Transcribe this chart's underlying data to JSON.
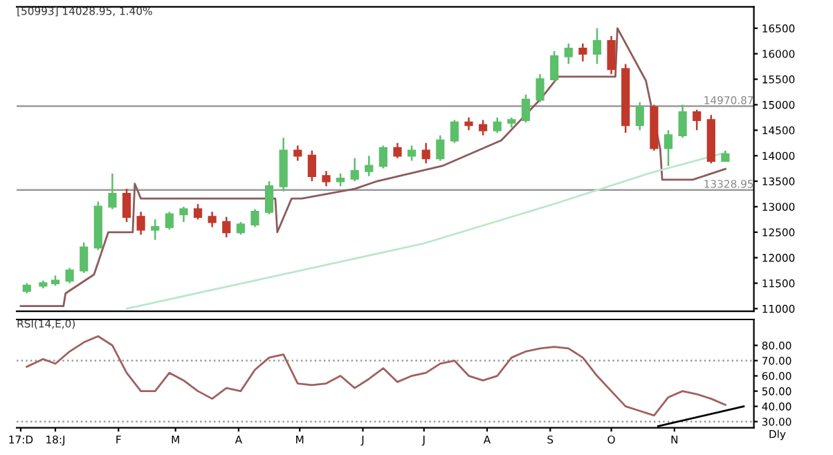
{
  "chart_data": [
    {
      "type": "candlestick",
      "title": "[50993] 14028.95, 1.40%",
      "x": [
        "2017-12-18",
        "2017-12-26",
        "2018-01-01",
        "2018-01-08",
        "2018-01-15",
        "2018-01-22",
        "2018-01-29",
        "2018-02-05",
        "2018-02-12",
        "2018-02-19",
        "2018-02-26",
        "2018-03-05",
        "2018-03-12",
        "2018-03-19",
        "2018-03-26",
        "2018-04-02",
        "2018-04-09",
        "2018-04-16",
        "2018-04-23",
        "2018-04-30",
        "2018-05-07",
        "2018-05-14",
        "2018-05-21",
        "2018-05-28",
        "2018-06-04",
        "2018-06-11",
        "2018-06-18",
        "2018-06-25",
        "2018-07-02",
        "2018-07-09",
        "2018-07-16",
        "2018-07-23",
        "2018-07-30",
        "2018-08-06",
        "2018-08-13",
        "2018-08-20",
        "2018-08-27",
        "2018-09-03",
        "2018-09-10",
        "2018-09-17",
        "2018-09-24",
        "2018-10-01",
        "2018-10-08",
        "2018-10-15",
        "2018-10-22",
        "2018-10-29",
        "2018-11-05",
        "2018-11-12",
        "2018-11-19",
        "2018-11-26"
      ],
      "ohlc": [
        [
          11350,
          11500,
          11300,
          11450
        ],
        [
          11450,
          11550,
          11400,
          11500
        ],
        [
          11500,
          11650,
          11450,
          11550
        ],
        [
          11550,
          11800,
          11500,
          11750
        ],
        [
          11750,
          12300,
          11700,
          12200
        ],
        [
          12200,
          13100,
          12150,
          13000
        ],
        [
          13000,
          13650,
          12950,
          13250
        ],
        [
          13250,
          13350,
          12700,
          12800
        ],
        [
          12800,
          12900,
          12450,
          12550
        ],
        [
          12550,
          12750,
          12350,
          12600
        ],
        [
          12600,
          12900,
          12550,
          12850
        ],
        [
          12850,
          13000,
          12700,
          12950
        ],
        [
          12950,
          13050,
          12750,
          12800
        ],
        [
          12800,
          12900,
          12600,
          12700
        ],
        [
          12700,
          12800,
          12400,
          12500
        ],
        [
          12500,
          12700,
          12450,
          12650
        ],
        [
          12650,
          12950,
          12600,
          12900
        ],
        [
          12900,
          13500,
          12850,
          13400
        ],
        [
          13400,
          14350,
          13300,
          14100
        ],
        [
          14100,
          14200,
          13900,
          14000
        ],
        [
          14000,
          14100,
          13500,
          13600
        ],
        [
          13600,
          13700,
          13400,
          13500
        ],
        [
          13500,
          13650,
          13400,
          13550
        ],
        [
          13550,
          13950,
          13500,
          13700
        ],
        [
          13700,
          14000,
          13600,
          13800
        ],
        [
          13800,
          14200,
          13750,
          14150
        ],
        [
          14150,
          14250,
          13950,
          14000
        ],
        [
          14000,
          14200,
          13900,
          14100
        ],
        [
          14100,
          14250,
          13850,
          13950
        ],
        [
          13950,
          14400,
          13900,
          14300
        ],
        [
          14300,
          14700,
          14250,
          14650
        ],
        [
          14650,
          14750,
          14500,
          14600
        ],
        [
          14600,
          14700,
          14400,
          14500
        ],
        [
          14500,
          14750,
          14450,
          14650
        ],
        [
          14650,
          14750,
          14550,
          14700
        ],
        [
          14700,
          15200,
          14650,
          15100
        ],
        [
          15100,
          15600,
          15050,
          15500
        ],
        [
          15500,
          16050,
          15450,
          15950
        ],
        [
          15950,
          16200,
          15800,
          16100
        ],
        [
          16100,
          16200,
          15850,
          16000
        ],
        [
          16000,
          16500,
          15800,
          16250
        ],
        [
          16250,
          16350,
          15600,
          15700
        ],
        [
          15700,
          15800,
          14450,
          14600
        ],
        [
          14600,
          15050,
          14500,
          14950
        ],
        [
          14950,
          15000,
          14100,
          14150
        ],
        [
          14150,
          14500,
          13800,
          14400
        ],
        [
          14400,
          15000,
          14350,
          14850
        ],
        [
          14850,
          14900,
          14500,
          14700
        ],
        [
          14700,
          14800,
          13850,
          13900
        ],
        [
          13900,
          14100,
          13900,
          14028.95
        ]
      ],
      "colors": [
        "#5cbf6a",
        "#5cbf6a",
        "#5cbf6a",
        "#5cbf6a",
        "#5cbf6a",
        "#5cbf6a",
        "#5cbf6a",
        "#c0392b",
        "#c0392b",
        "#5cbf6a",
        "#5cbf6a",
        "#5cbf6a",
        "#c0392b",
        "#c0392b",
        "#c0392b",
        "#5cbf6a",
        "#5cbf6a",
        "#5cbf6a",
        "#5cbf6a",
        "#c0392b",
        "#c0392b",
        "#c0392b",
        "#5cbf6a",
        "#5cbf6a",
        "#5cbf6a",
        "#5cbf6a",
        "#c0392b",
        "#5cbf6a",
        "#c0392b",
        "#5cbf6a",
        "#5cbf6a",
        "#c0392b",
        "#c0392b",
        "#5cbf6a",
        "#5cbf6a",
        "#5cbf6a",
        "#5cbf6a",
        "#5cbf6a",
        "#5cbf6a",
        "#c0392b",
        "#5cbf6a",
        "#c0392b",
        "#c0392b",
        "#5cbf6a",
        "#c0392b",
        "#5cbf6a",
        "#5cbf6a",
        "#c0392b",
        "#c0392b",
        "#5cbf6a"
      ],
      "series": [
        {
          "type": "line",
          "color": "#8d5b5b",
          "x": [
            "2017-12-15",
            "2018-01-05",
            "2018-01-06",
            "2018-01-20",
            "2018-01-27",
            "2018-02-08",
            "2018-02-09",
            "2018-02-12",
            "2018-04-19",
            "2018-04-20",
            "2018-04-27",
            "2018-05-02",
            "2018-05-28",
            "2018-06-08",
            "2018-07-10",
            "2018-08-08",
            "2018-08-27",
            "2018-09-05",
            "2018-10-03",
            "2018-10-04",
            "2018-10-18",
            "2018-10-25",
            "2018-10-26",
            "2018-11-10",
            "2018-11-26"
          ],
          "values": [
            11050,
            11050,
            11300,
            11670,
            12500,
            12500,
            13450,
            13160,
            13160,
            12500,
            13160,
            13160,
            13350,
            13500,
            13800,
            14300,
            15100,
            15550,
            15550,
            16500,
            15470,
            14140,
            13530,
            13530,
            13740
          ]
        },
        {
          "type": "line",
          "color": "#b9e8c9",
          "x": [
            "2018-02-05",
            "2018-07-01",
            "2018-09-05",
            "2018-10-20",
            "2018-11-26"
          ],
          "values": [
            11000,
            12280,
            13080,
            13660,
            14060
          ]
        }
      ],
      "ref_lines": [
        {
          "axis": "y",
          "value": 14970.87,
          "label": "14970.87",
          "color": "#9a9a9a"
        },
        {
          "axis": "y",
          "value": 13328.95,
          "label": "13328.95",
          "color": "#9a9a9a"
        }
      ],
      "xlim": [
        "2017-12-13",
        "2018-12-10"
      ],
      "ylim": [
        10950,
        16920
      ],
      "yticks": [
        11000,
        11500,
        12000,
        12500,
        13000,
        13500,
        14000,
        14500,
        15000,
        15500,
        16000,
        16500
      ],
      "tick_labels": "y",
      "grid": false
    },
    {
      "type": "line",
      "title": "RSI(14,E,0)",
      "x": [
        "2017-12-18",
        "2017-12-26",
        "2018-01-01",
        "2018-01-08",
        "2018-01-15",
        "2018-01-22",
        "2018-01-29",
        "2018-02-05",
        "2018-02-12",
        "2018-02-19",
        "2018-02-26",
        "2018-03-05",
        "2018-03-12",
        "2018-03-19",
        "2018-03-26",
        "2018-04-02",
        "2018-04-09",
        "2018-04-16",
        "2018-04-23",
        "2018-04-30",
        "2018-05-07",
        "2018-05-14",
        "2018-05-21",
        "2018-05-28",
        "2018-06-04",
        "2018-06-11",
        "2018-06-18",
        "2018-06-25",
        "2018-07-02",
        "2018-07-09",
        "2018-07-16",
        "2018-07-23",
        "2018-07-30",
        "2018-08-06",
        "2018-08-13",
        "2018-08-20",
        "2018-08-27",
        "2018-09-03",
        "2018-09-10",
        "2018-09-17",
        "2018-09-24",
        "2018-10-01",
        "2018-10-08",
        "2018-10-15",
        "2018-10-22",
        "2018-10-29",
        "2018-11-05",
        "2018-11-12",
        "2018-11-19",
        "2018-11-26"
      ],
      "series": [
        {
          "color": "#a0605e",
          "values": [
            66,
            71,
            68,
            76,
            82,
            86,
            80,
            62,
            50,
            50,
            62,
            57,
            50,
            45,
            52,
            50,
            64,
            72,
            74,
            55,
            54,
            55,
            60,
            52,
            58,
            65,
            56,
            60,
            62,
            68,
            70,
            60,
            57,
            60,
            72,
            76,
            78,
            79,
            78,
            72,
            60,
            50,
            40,
            37,
            34,
            46,
            50,
            48,
            45,
            41
          ]
        },
        {
          "color": "#000000",
          "x": [
            "2018-10-24",
            "2018-12-05"
          ],
          "values": [
            27,
            40
          ]
        }
      ],
      "ref_lines": [
        {
          "axis": "y",
          "value": 70,
          "color": "#9a9a9a",
          "line_style": "dotted"
        },
        {
          "axis": "y",
          "value": 30,
          "color": "#9a9a9a",
          "line_style": "dotted"
        }
      ],
      "xlim": [
        "2017-12-13",
        "2018-12-10"
      ],
      "ylim": [
        26,
        97
      ],
      "xticks": [
        {
          "value": "2017-12-15",
          "label": "17:D"
        },
        {
          "value": "2018-01-01",
          "label": "18:J"
        },
        {
          "value": "2018-02-01",
          "label": "F"
        },
        {
          "value": "2018-03-01",
          "label": "M"
        },
        {
          "value": "2018-04-01",
          "label": "A"
        },
        {
          "value": "2018-05-01",
          "label": "M"
        },
        {
          "value": "2018-06-01",
          "label": "J"
        },
        {
          "value": "2018-07-01",
          "label": "J"
        },
        {
          "value": "2018-08-01",
          "label": "A"
        },
        {
          "value": "2018-09-01",
          "label": "S"
        },
        {
          "value": "2018-10-01",
          "label": "O"
        },
        {
          "value": "2018-11-01",
          "label": "N"
        }
      ],
      "yticks": [
        {
          "value": 30,
          "label": "30.00"
        },
        {
          "value": 40,
          "label": "40.00"
        },
        {
          "value": 50,
          "label": "50.00"
        },
        {
          "value": 60,
          "label": "60.00"
        },
        {
          "value": 70,
          "label": "70.00"
        },
        {
          "value": 80,
          "label": "80.00"
        }
      ],
      "annotations": [
        "Dly"
      ],
      "grid": false
    }
  ]
}
